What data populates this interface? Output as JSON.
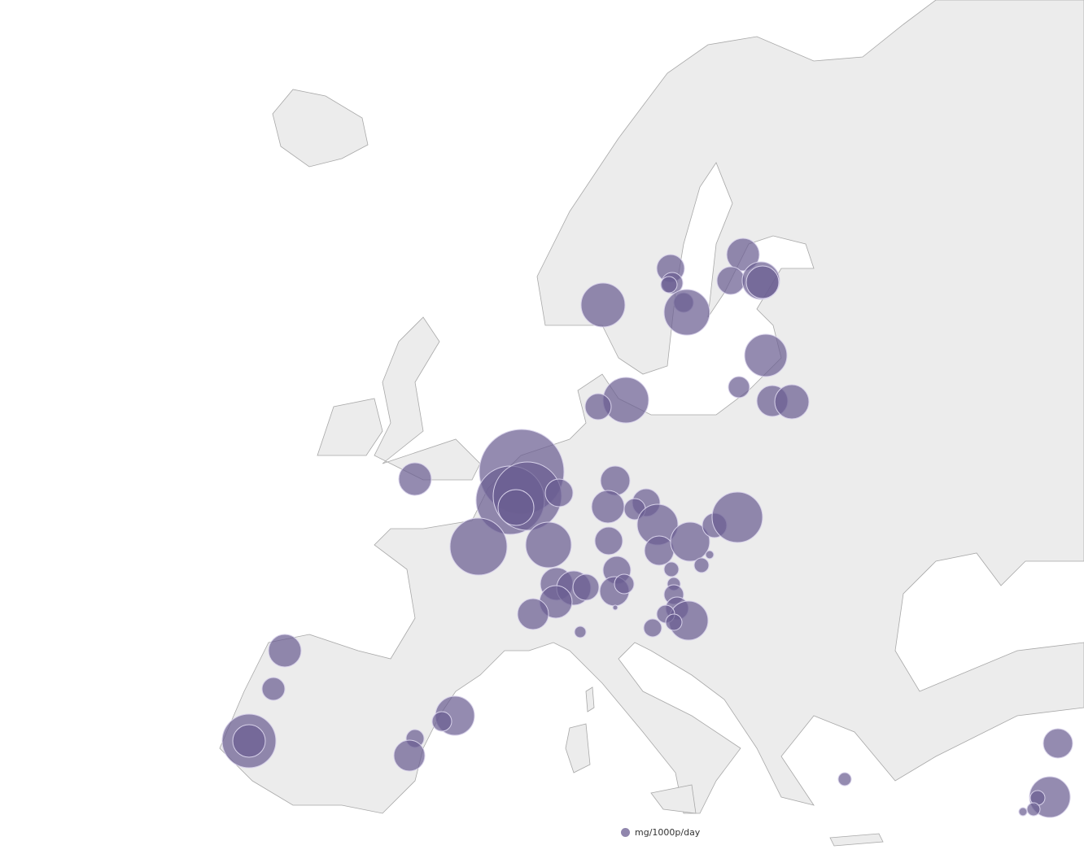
{
  "legend": {
    "label": "mg/1000p/day"
  },
  "colors": {
    "bubble": "#6b5e92",
    "land": "#ececec",
    "border": "#a8a8a8",
    "water": "#ffffff"
  }
}
